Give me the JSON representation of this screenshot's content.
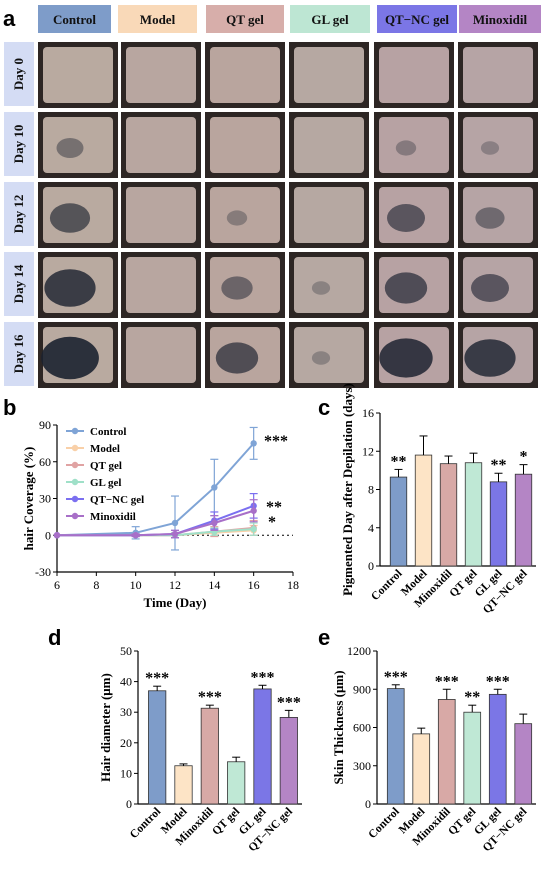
{
  "panel_labels": [
    "a",
    "b",
    "c",
    "d",
    "e"
  ],
  "group_headers": [
    {
      "label": "Control",
      "color": "#7e9cc9"
    },
    {
      "label": "Model",
      "color": "#f9d9b8"
    },
    {
      "label": "QT gel",
      "color": "#d7aeaa"
    },
    {
      "label": "GL gel",
      "color": "#bde6d3"
    },
    {
      "label": "QT−NC gel",
      "color": "#7b76e6"
    },
    {
      "label": "Minoxidil",
      "color": "#b485c5"
    }
  ],
  "day_labels": [
    "Day 0",
    "Day 10",
    "Day 12",
    "Day 14",
    "Day 16"
  ],
  "chart_data": [
    {
      "id": "b",
      "type": "line",
      "xlabel": "Time (Day)",
      "ylabel": "hair Coverage (%)",
      "xlim": [
        6,
        18
      ],
      "xticks": [
        6,
        8,
        10,
        12,
        14,
        16,
        18
      ],
      "ylim": [
        -30,
        90
      ],
      "yticks": [
        -30,
        0,
        30,
        60,
        90
      ],
      "x": [
        6,
        10,
        12,
        14,
        16
      ],
      "series": [
        {
          "name": "Control",
          "color": "#7fa4d6",
          "values": [
            0,
            2,
            10,
            39,
            75
          ],
          "err": [
            0,
            5,
            22,
            23,
            13
          ]
        },
        {
          "name": "Model",
          "color": "#f9d0a8",
          "values": [
            0,
            0,
            0,
            2,
            4
          ],
          "err": [
            0,
            1,
            2,
            3,
            4
          ]
        },
        {
          "name": "QT gel",
          "color": "#e0a3a3",
          "values": [
            0,
            0,
            0,
            3,
            6
          ],
          "err": [
            0,
            1,
            2,
            4,
            6
          ]
        },
        {
          "name": "GL gel",
          "color": "#9fe0c8",
          "values": [
            0,
            0,
            0,
            3,
            5
          ],
          "err": [
            0,
            1,
            2,
            3,
            5
          ]
        },
        {
          "name": "QT−NC gel",
          "color": "#7b6ff0",
          "values": [
            0,
            0,
            1,
            12,
            24
          ],
          "err": [
            0,
            1,
            3,
            7,
            10
          ]
        },
        {
          "name": "Minoxidil",
          "color": "#a86fc8",
          "values": [
            0,
            0,
            1,
            10,
            20
          ],
          "err": [
            0,
            1,
            3,
            6,
            9
          ]
        }
      ],
      "annotations": [
        {
          "text": "***",
          "x": 16,
          "y": 75
        },
        {
          "text": "**",
          "x": 16,
          "y": 24
        },
        {
          "text": "*",
          "x": 16,
          "y": 15
        }
      ],
      "legend": "top-left"
    },
    {
      "id": "c",
      "type": "bar",
      "ylabel": "Pigmented Day after Depilation (days)",
      "ylim": [
        0,
        16
      ],
      "yticks": [
        0,
        4,
        8,
        12,
        16
      ],
      "categories": [
        "Control",
        "Model",
        "Minoxidil",
        "QT gel",
        "GL gel",
        "QT−NC gel"
      ],
      "values": [
        9.3,
        11.6,
        10.7,
        10.8,
        8.8,
        9.6
      ],
      "err": [
        0.8,
        2.0,
        0.8,
        1.0,
        0.9,
        1.0
      ],
      "colors": [
        "#7e9cc9",
        "#fde4c6",
        "#d8a9a6",
        "#bfe8d5",
        "#7b76e6",
        "#b485c5"
      ],
      "significance": [
        "**",
        "",
        "",
        "",
        "**",
        "*"
      ]
    },
    {
      "id": "d",
      "type": "bar",
      "ylabel": "Hair diameter (μm)",
      "ylim": [
        0,
        50
      ],
      "yticks": [
        0,
        10,
        20,
        30,
        40,
        50
      ],
      "categories": [
        "Control",
        "Model",
        "Minoxidil",
        "QT gel",
        "GL gel",
        "QT−NC gel"
      ],
      "values": [
        37,
        12.5,
        31.3,
        13.8,
        37.6,
        28.3
      ],
      "err": [
        1.5,
        0.6,
        1.0,
        1.5,
        1.2,
        2.3
      ],
      "colors": [
        "#7e9cc9",
        "#fde4c6",
        "#d8a9a6",
        "#bfe8d5",
        "#7b76e6",
        "#b485c5"
      ],
      "significance": [
        "***",
        "",
        "***",
        "",
        "***",
        "***"
      ]
    },
    {
      "id": "e",
      "type": "bar",
      "ylabel": "Skin Thickness (μm)",
      "ylim": [
        0,
        1200
      ],
      "yticks": [
        0,
        300,
        600,
        900,
        1200
      ],
      "categories": [
        "Control",
        "Model",
        "Minoxidil",
        "QT gel",
        "GL gel",
        "QT−NC gel"
      ],
      "values": [
        905,
        550,
        820,
        720,
        860,
        630
      ],
      "err": [
        30,
        45,
        80,
        55,
        40,
        75
      ],
      "colors": [
        "#7e9cc9",
        "#fde4c6",
        "#d8a9a6",
        "#bfe8d5",
        "#7b76e6",
        "#b485c5"
      ],
      "significance": [
        "***",
        "",
        "***",
        "**",
        "***",
        ""
      ]
    }
  ]
}
